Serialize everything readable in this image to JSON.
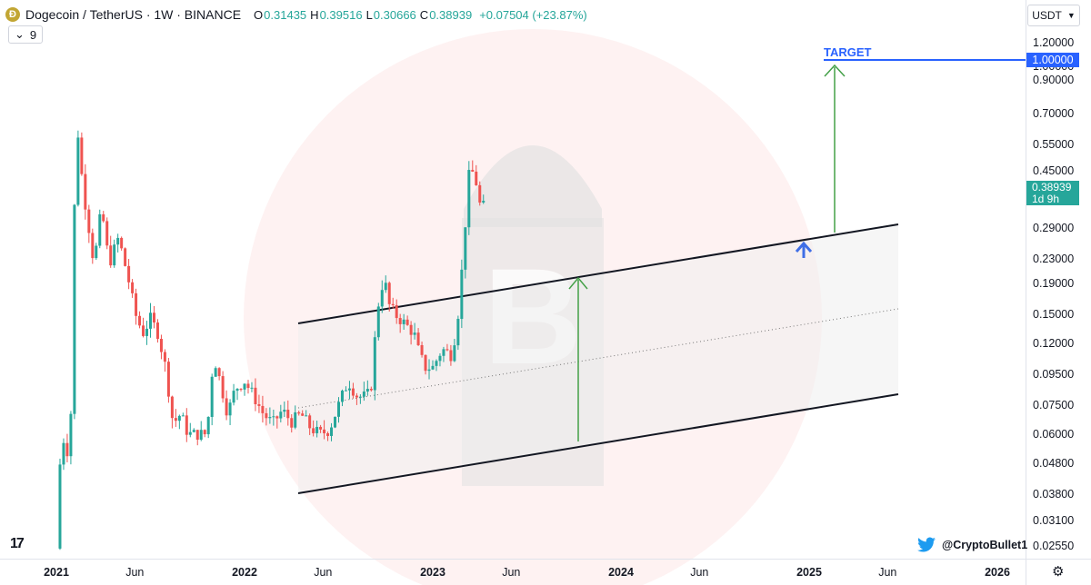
{
  "header": {
    "symbol": "Dogecoin / TetherUS · 1W · BINANCE",
    "open_label": "O",
    "open": "0.31435",
    "high_label": "H",
    "high": "0.39516",
    "low_label": "L",
    "low": "0.30666",
    "close_label": "C",
    "close": "0.38939",
    "change": "+0.07504 (+23.87%)",
    "indicator_count": "9"
  },
  "currency_button": "USDT",
  "price_axis": [
    "1.20000",
    "1.00000",
    "0.90000",
    "0.70000",
    "0.55000",
    "0.45000",
    "0.29000",
    "0.23000",
    "0.19000",
    "0.15000",
    "0.12000",
    "0.09500",
    "0.07500",
    "0.06000",
    "0.04800",
    "0.03800",
    "0.03100",
    "0.02550"
  ],
  "time_axis": [
    {
      "label": "2021",
      "bold": true
    },
    {
      "label": "Jun",
      "bold": false
    },
    {
      "label": "2022",
      "bold": true
    },
    {
      "label": "Jun",
      "bold": false
    },
    {
      "label": "2023",
      "bold": true
    },
    {
      "label": "Jun",
      "bold": false
    },
    {
      "label": "2024",
      "bold": true
    },
    {
      "label": "Jun",
      "bold": false
    },
    {
      "label": "2025",
      "bold": true
    },
    {
      "label": "Jun",
      "bold": false
    },
    {
      "label": "2026",
      "bold": true
    }
  ],
  "last_price": {
    "value": "0.38939",
    "countdown": "1d 9h"
  },
  "target": {
    "label": "TARGET",
    "value": "1.00000"
  },
  "watermark_credit": "@CryptoBullet1",
  "colors": {
    "up": "#26a69a",
    "down": "#ef5350",
    "target": "#2962ff",
    "arrow_green": "#43a047",
    "arrow_blue": "#3f6ee6",
    "watermark": "#fde7e7"
  },
  "icons": [
    "dogecoin-logo-icon",
    "chevron-down-icon",
    "tradingview-logo-icon",
    "twitter-bird-icon",
    "gear-icon",
    "bitcoin-watermark-icon"
  ],
  "chart_data": {
    "type": "candlestick",
    "title": "Dogecoin / TetherUS · 1W · BINANCE",
    "scale": "log",
    "ylim": [
      0.0243,
      1.26
    ],
    "x_range": [
      "2020-12-01",
      "2026-03-01"
    ],
    "annotations": [
      "ascending channel",
      "TARGET 1.00000"
    ],
    "path": [
      [
        0.0,
        0.025
      ],
      [
        0.012,
        0.075
      ],
      [
        0.022,
        0.04
      ],
      [
        0.035,
        0.06
      ],
      [
        0.05,
        0.05
      ],
      [
        0.075,
        0.06
      ],
      [
        0.095,
        0.33
      ],
      [
        0.115,
        0.6
      ],
      [
        0.14,
        0.4
      ],
      [
        0.17,
        0.3
      ],
      [
        0.2,
        0.22
      ],
      [
        0.24,
        0.34
      ],
      [
        0.28,
        0.22
      ],
      [
        0.33,
        0.27
      ],
      [
        0.38,
        0.2
      ],
      [
        0.42,
        0.15
      ],
      [
        0.46,
        0.13
      ],
      [
        0.5,
        0.145
      ],
      [
        0.54,
        0.13
      ],
      [
        0.58,
        0.1
      ],
      [
        0.62,
        0.065
      ],
      [
        0.66,
        0.07
      ],
      [
        0.7,
        0.06
      ],
      [
        0.75,
        0.06
      ],
      [
        0.8,
        0.06
      ],
      [
        0.835,
        0.11
      ],
      [
        0.87,
        0.09
      ],
      [
        0.91,
        0.07
      ],
      [
        0.95,
        0.085
      ],
      [
        1.0,
        0.09
      ],
      [
        1.05,
        0.08
      ],
      [
        1.1,
        0.07
      ],
      [
        1.15,
        0.065
      ],
      [
        1.2,
        0.072
      ],
      [
        1.25,
        0.066
      ],
      [
        1.3,
        0.07
      ],
      [
        1.35,
        0.063
      ],
      [
        1.4,
        0.06
      ],
      [
        1.45,
        0.062
      ],
      [
        1.5,
        0.075
      ],
      [
        1.55,
        0.09
      ],
      [
        1.6,
        0.08
      ],
      [
        1.65,
        0.08
      ],
      [
        1.68,
        0.09
      ],
      [
        1.7,
        0.15
      ],
      [
        1.74,
        0.2
      ],
      [
        1.77,
        0.16
      ],
      [
        1.8,
        0.15
      ],
      [
        1.85,
        0.14
      ],
      [
        1.9,
        0.13
      ],
      [
        1.93,
        0.11
      ],
      [
        1.96,
        0.1
      ],
      [
        2.0,
        0.1
      ],
      [
        2.05,
        0.115
      ],
      [
        2.1,
        0.11
      ],
      [
        2.13,
        0.14
      ],
      [
        2.16,
        0.23
      ],
      [
        2.19,
        0.43
      ],
      [
        2.22,
        0.45
      ],
      [
        2.24,
        0.38
      ],
      [
        2.26,
        0.32
      ],
      [
        2.28,
        0.37
      ]
    ]
  }
}
